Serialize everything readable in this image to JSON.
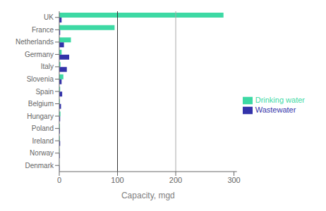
{
  "chart_data": {
    "type": "bar",
    "orientation": "horizontal",
    "categories": [
      "UK",
      "France",
      "Netherlands",
      "Germany",
      "Italy",
      "Slovenia",
      "Spain",
      "Belgium",
      "Hungary",
      "Poland",
      "Ireland",
      "Norway",
      "Denmark"
    ],
    "series": [
      {
        "name": "Drinking water",
        "color": "#3DD9A4",
        "values": [
          282,
          95,
          20,
          4,
          2,
          7,
          1.5,
          1,
          2,
          1,
          1,
          0.5,
          0.2
        ]
      },
      {
        "name": "Wastewater",
        "color": "#3333AA",
        "values": [
          4,
          1.5,
          8,
          17,
          13,
          4,
          5,
          3,
          1.5,
          1,
          1.5,
          0.8,
          0.5
        ]
      }
    ],
    "x_label": "Capacity,  mgd",
    "xlim": [
      0,
      305
    ],
    "xticks": [
      0,
      100,
      200,
      300
    ],
    "reference_lines": [
      {
        "x": 100,
        "color": "#333333"
      },
      {
        "x": 200,
        "color": "#AAAAAA"
      }
    ],
    "grid": false,
    "legend": "right"
  }
}
